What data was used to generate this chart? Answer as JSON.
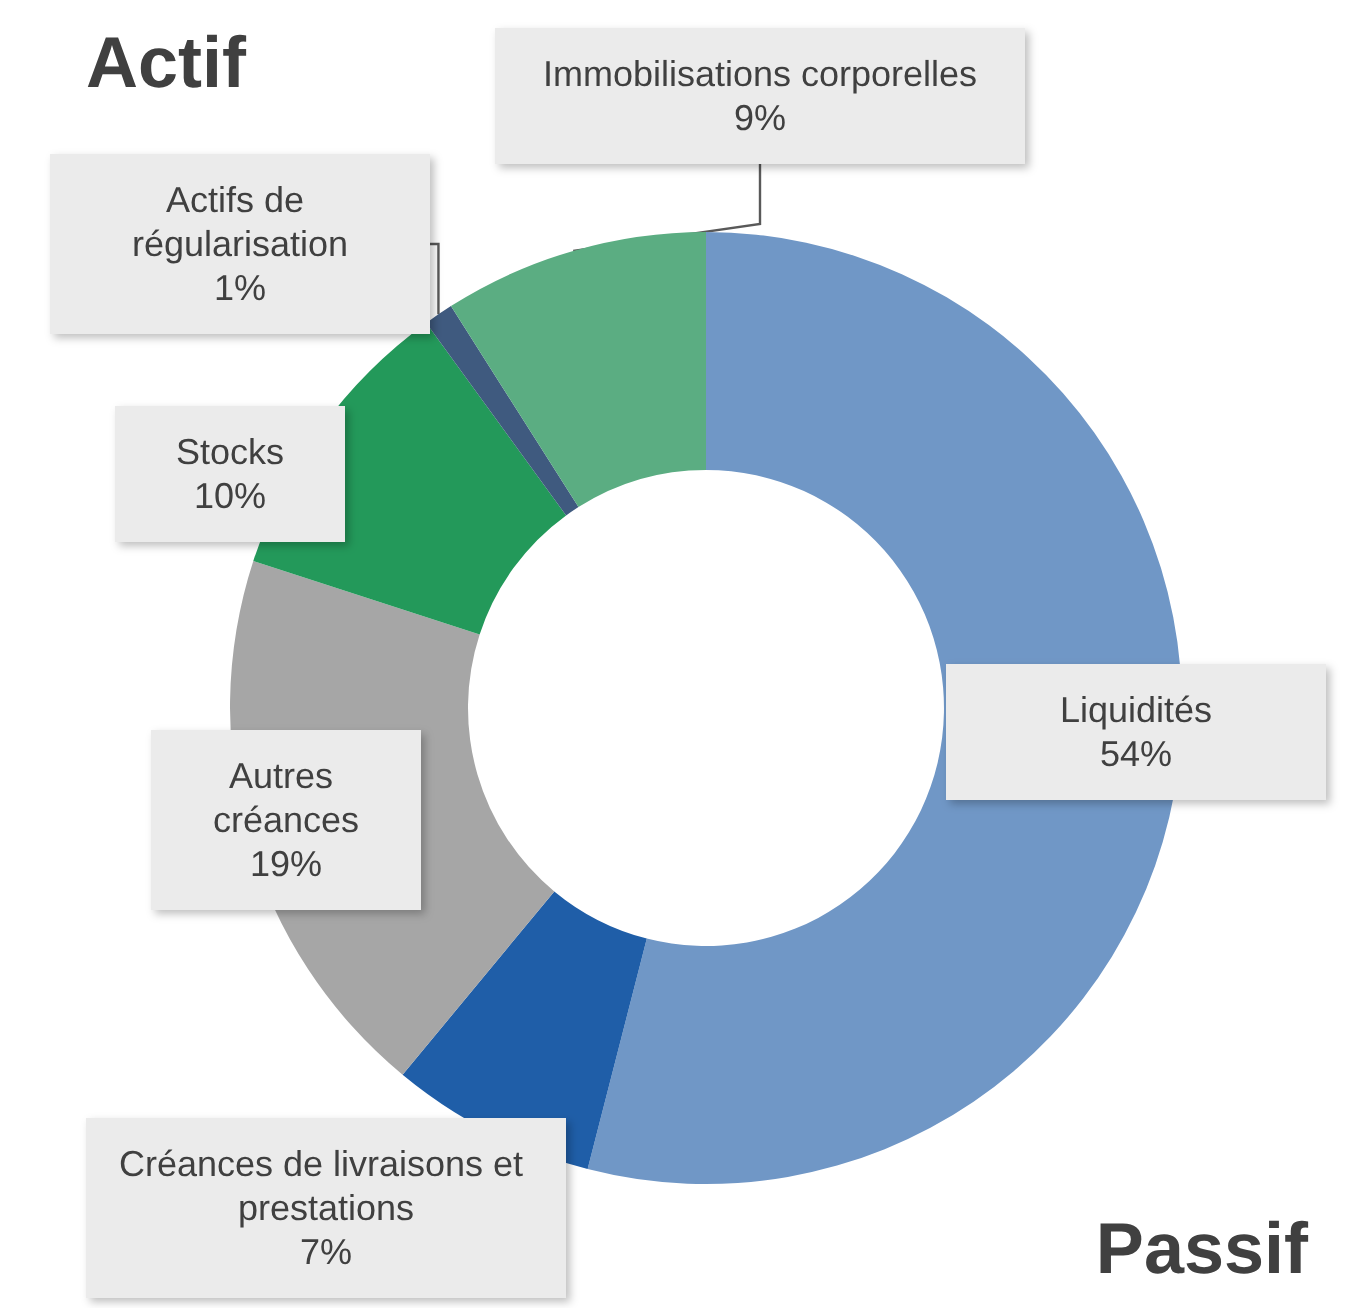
{
  "chart_data": {
    "type": "donut",
    "title": "Actif",
    "annotations": [
      "Passif"
    ],
    "categories": [
      "Liquidités",
      "Créances de livraisons et prestations",
      "Autres créances",
      "Stocks",
      "Actifs de régularisation",
      "Immobilisations corporelles"
    ],
    "values": [
      54,
      7,
      19,
      10,
      1,
      9
    ],
    "value_labels": [
      "54%",
      "7%",
      "19%",
      "10%",
      "1%",
      "9%"
    ],
    "colors": [
      "#7097c6",
      "#1f5ea8",
      "#a6a6a6",
      "#23995a",
      "#3f5a7f",
      "#5bad82"
    ],
    "legend": false
  }
}
